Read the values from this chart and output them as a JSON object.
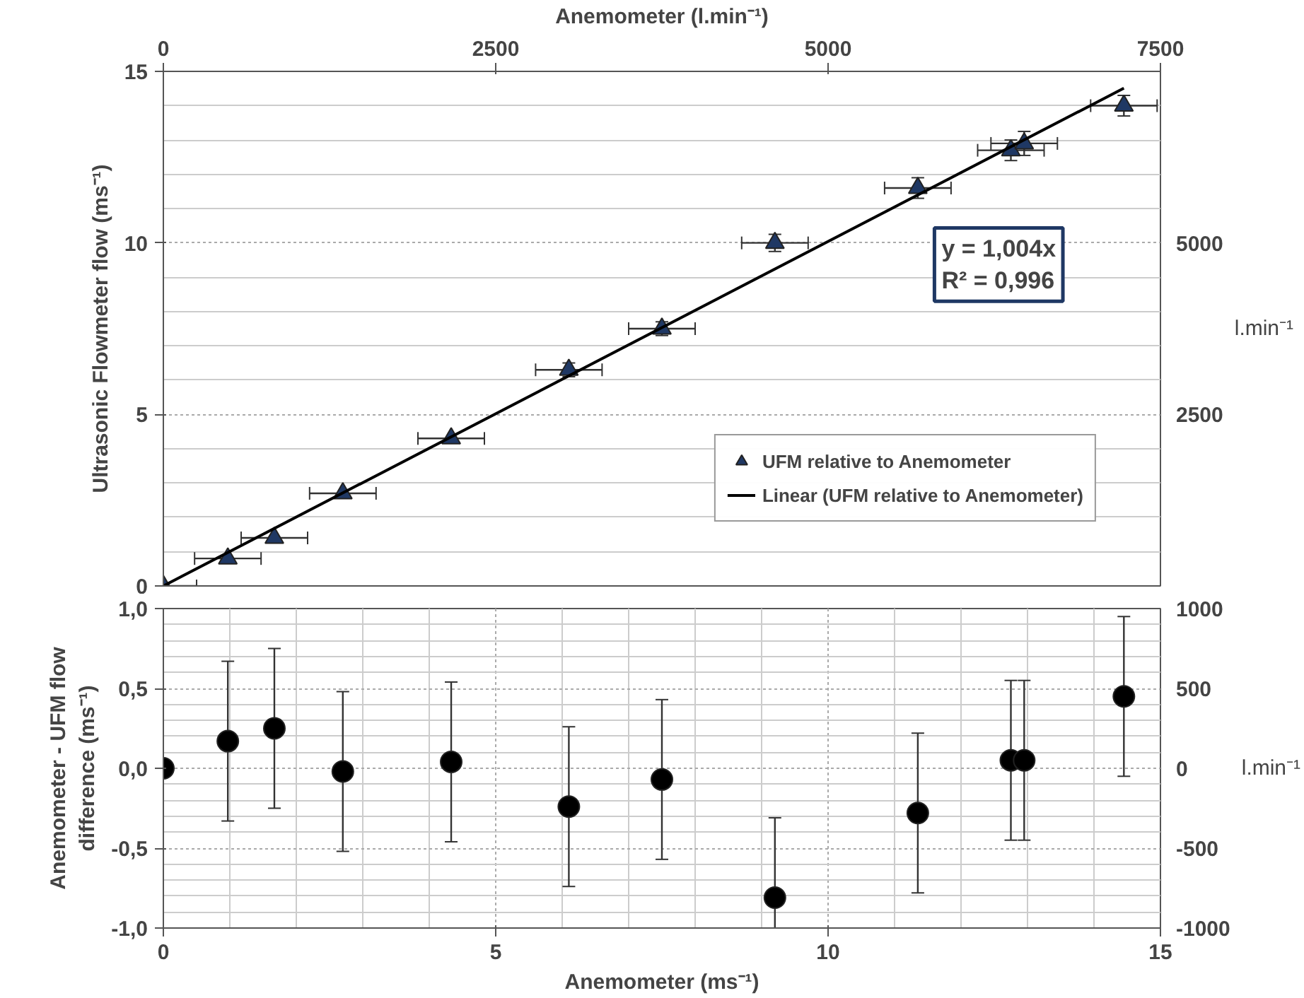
{
  "chart_data": [
    {
      "type": "scatter",
      "ylabel": "Ultrasonic Flowmeter flow (ms⁻¹)",
      "x2label": "Anemometer (l.min⁻¹)",
      "y2label": "l.min⁻¹",
      "xlim": [
        0,
        15
      ],
      "xticks": [
        0,
        5,
        10,
        15
      ],
      "ylim": [
        0,
        15
      ],
      "yticks": [
        0,
        5,
        10,
        15
      ],
      "x2lim": [
        0,
        7500
      ],
      "x2ticks": [
        0,
        2500,
        5000,
        7500
      ],
      "y2lim": [
        0,
        7500
      ],
      "y2ticks": [
        2500,
        5000
      ],
      "tick_labels": "y",
      "grid": true,
      "legend": "bottom right",
      "annotations": [
        "y = 1,004x",
        "R² = 0,996"
      ],
      "series": [
        {
          "name": "UFM relative to Anemometer",
          "marker": "triangle",
          "color": "#1f3864",
          "x": [
            0,
            0.97,
            1.67,
            2.7,
            4.33,
            6.1,
            7.5,
            9.2,
            11.35,
            12.75,
            12.95,
            14.45
          ],
          "values": [
            0,
            0.8,
            1.4,
            2.7,
            4.3,
            6.3,
            7.5,
            10.0,
            11.6,
            12.7,
            12.9,
            14.0
          ],
          "errors": [
            null,
            null,
            null,
            null,
            null,
            0.2,
            0.2,
            0.25,
            0.3,
            0.3,
            0.35,
            0.3
          ],
          "xerrors": [
            [
              0,
              0.5
            ],
            0.5,
            0.5,
            0.5,
            0.5,
            0.5,
            0.5,
            0.5,
            0.5,
            0.5,
            0.5,
            0.5
          ]
        },
        {
          "name": "Linear (UFM relative to Anemometer)",
          "type": "line",
          "color": "#000000",
          "x": [
            0,
            14.45
          ],
          "values": [
            0,
            14.51
          ]
        }
      ]
    },
    {
      "type": "scatter",
      "xlabel": "Anemometer (ms⁻¹)",
      "ylabel": "Anemometer - UFM flow difference (ms⁻¹)",
      "y2label": "l.min⁻¹",
      "xlim": [
        0,
        15
      ],
      "xticks": [
        0,
        5,
        10,
        15
      ],
      "ylim": [
        -1,
        1
      ],
      "yticks": [
        {
          "value": -1,
          "label": "-1,0"
        },
        {
          "value": -0.5,
          "label": "-0,5"
        },
        {
          "value": 0,
          "label": "0,0"
        },
        {
          "value": 0.5,
          "label": "0,5"
        },
        {
          "value": 1,
          "label": "1,0"
        }
      ],
      "y2lim": [
        -1000,
        1000
      ],
      "y2ticks": [
        -1000,
        -500,
        0,
        500,
        1000
      ],
      "grid": true,
      "marker": "circle",
      "series": [
        {
          "color": "#000000",
          "x": [
            0,
            0.97,
            1.67,
            2.7,
            4.33,
            6.1,
            7.5,
            9.2,
            11.35,
            12.75,
            12.95,
            14.45
          ],
          "values": [
            0,
            0.17,
            0.25,
            -0.02,
            0.04,
            -0.24,
            -0.07,
            -0.81,
            -0.28,
            0.05,
            0.05,
            0.45
          ],
          "errors": [
            null,
            0.5,
            0.5,
            0.5,
            0.5,
            0.5,
            0.5,
            0.5,
            0.5,
            0.5,
            0.5,
            0.5
          ]
        }
      ]
    }
  ]
}
